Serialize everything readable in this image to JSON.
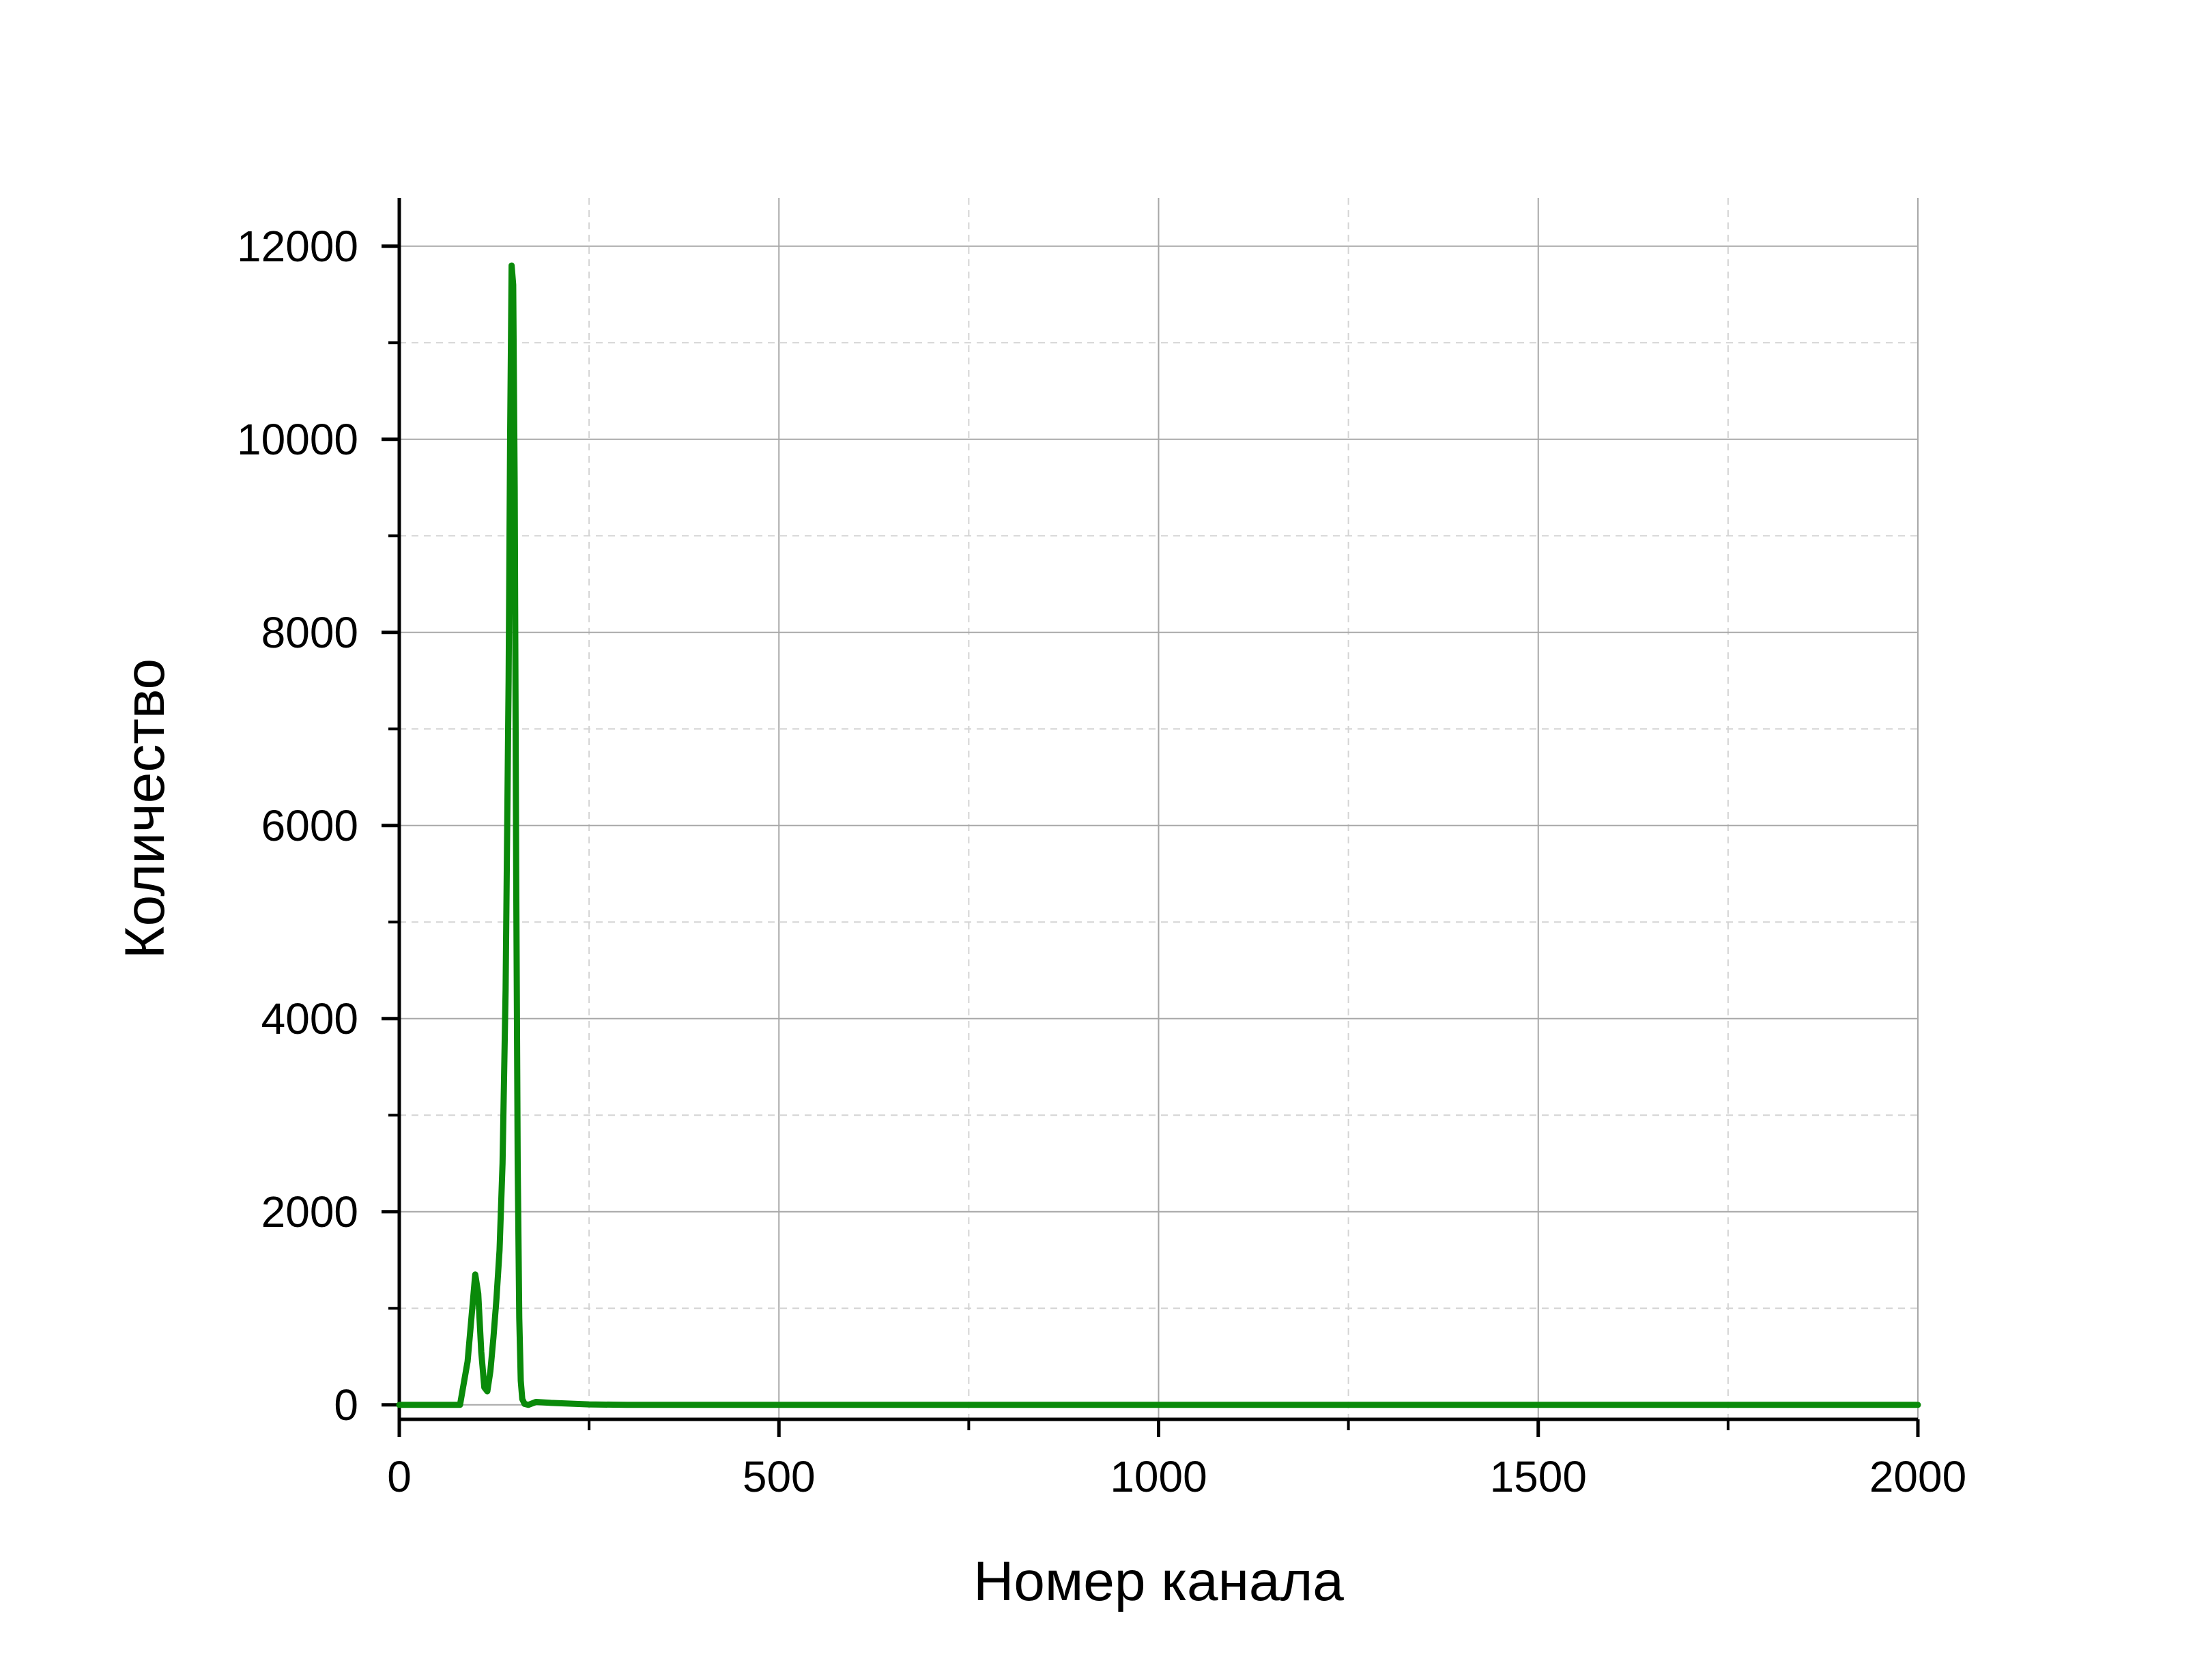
{
  "chart_data": {
    "type": "line",
    "title": "",
    "xlabel": "Номер канала",
    "ylabel": "Количество",
    "xlim": [
      0,
      2000
    ],
    "ylim": [
      -150,
      12500
    ],
    "x_ticks": [
      0,
      500,
      1000,
      1500,
      2000
    ],
    "x_tick_labels": [
      "0",
      "500",
      "1000",
      "1500",
      "2000"
    ],
    "y_ticks": [
      0,
      2000,
      4000,
      6000,
      8000,
      10000,
      12000
    ],
    "y_tick_labels": [
      "0",
      "2000",
      "4000",
      "6000",
      "8000",
      "10000",
      "12000"
    ],
    "grid": true,
    "legend": "none",
    "series": [
      {
        "color": "#0a8a0a",
        "x": [
          0,
          60,
          80,
          90,
          95,
          100,
          104,
          108,
          112,
          116,
          120,
          124,
          128,
          132,
          136,
          140,
          144,
          146,
          148,
          150,
          152,
          154,
          156,
          158,
          160,
          162,
          165,
          170,
          180,
          200,
          250,
          300,
          400,
          500,
          750,
          1000,
          1250,
          1500,
          1750,
          2000
        ],
        "y": [
          0,
          0,
          0,
          450,
          900,
          1350,
          1150,
          550,
          180,
          140,
          350,
          700,
          1100,
          1600,
          2500,
          4300,
          7500,
          10000,
          11800,
          11600,
          9500,
          5500,
          2500,
          900,
          250,
          60,
          10,
          0,
          30,
          20,
          5,
          0,
          0,
          0,
          0,
          0,
          0,
          0,
          0,
          0
        ]
      }
    ]
  }
}
